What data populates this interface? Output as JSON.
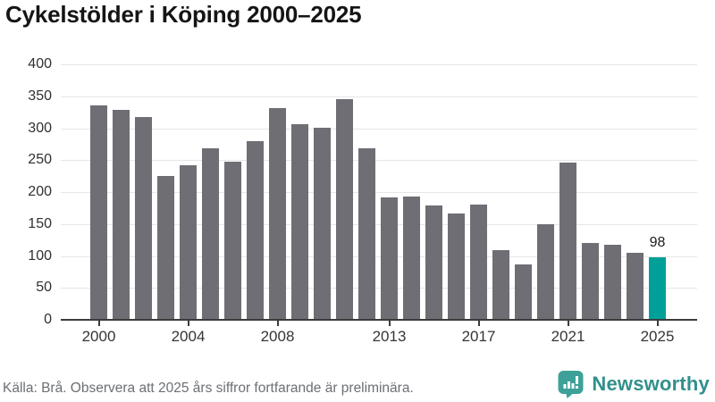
{
  "title": "Cykelstölder i Köping 2000–2025",
  "chart_data": {
    "type": "bar",
    "x": [
      2000,
      2001,
      2002,
      2003,
      2004,
      2005,
      2006,
      2007,
      2008,
      2009,
      2010,
      2011,
      2012,
      2013,
      2014,
      2015,
      2016,
      2017,
      2018,
      2019,
      2020,
      2021,
      2022,
      2023,
      2024,
      2025
    ],
    "values": [
      336,
      328,
      318,
      225,
      242,
      268,
      248,
      280,
      331,
      306,
      301,
      346,
      269,
      191,
      193,
      179,
      166,
      181,
      109,
      87,
      150,
      246,
      121,
      117,
      105,
      98
    ],
    "title": "Cykelstölder i Köping 2000–2025",
    "xlabel": "",
    "ylabel": "",
    "ylim": [
      0,
      400
    ],
    "yticks": [
      0,
      50,
      100,
      150,
      200,
      250,
      300,
      350,
      400
    ],
    "xticks": [
      2000,
      2004,
      2008,
      2013,
      2017,
      2021,
      2025
    ],
    "grid": true,
    "legend": "none",
    "bar_color": "#6F6E74",
    "highlight": {
      "year": 2025,
      "color": "#00A099",
      "label": "98"
    }
  },
  "footer": {
    "source_text": "Källa: Brå. Observera att 2025 års siffror fortfarande är preliminära.",
    "brand_name": "Newsworthy",
    "brand_icon": "newsworthy-speech-bubble-bar-chart-icon",
    "brand_icon_color": "#3DA19A",
    "brand_text_color": "#32908B"
  }
}
